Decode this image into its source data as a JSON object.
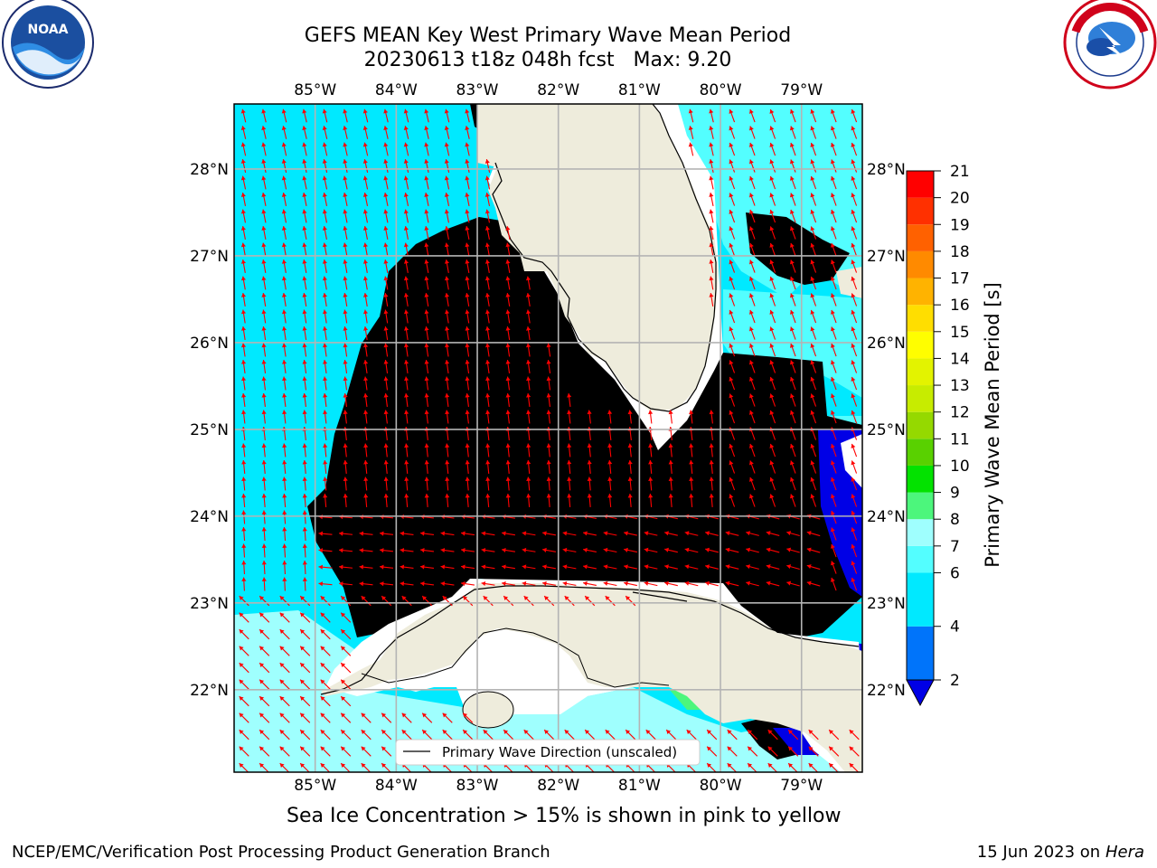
{
  "title": {
    "line1": "GEFS MEAN Key West Primary Wave Mean Period",
    "line2": "20230613 t18z 048h fcst   Max: 9.20"
  },
  "logos": {
    "noaa": {
      "icon": "noaa-logo",
      "text": "NOAA",
      "ring_text": "NATIONAL OCEANIC AND ATMOSPHERIC ADMINISTRATION · U.S. DEPARTMENT OF COMMERCE"
    },
    "nws": {
      "icon": "nws-logo",
      "ring_text": "NATIONAL WEATHER SERVICE"
    }
  },
  "map": {
    "lon_ticks": [
      "85°W",
      "84°W",
      "83°W",
      "82°W",
      "81°W",
      "80°W",
      "79°W"
    ],
    "lon_values": [
      -85,
      -84,
      -83,
      -82,
      -81,
      -80,
      -79
    ],
    "lat_ticks": [
      "28°N",
      "27°N",
      "26°N",
      "25°N",
      "24°N",
      "23°N",
      "22°N"
    ],
    "lat_values": [
      28,
      27,
      26,
      25,
      24,
      23,
      22
    ],
    "lon_range": [
      -86.0,
      -78.25
    ],
    "lat_range": [
      21.05,
      28.75
    ],
    "legend_label": "Primary Wave Direction (unscaled)",
    "land_color": "#eeecdc",
    "grid_color": "#b4b4b4",
    "arrow_color": "#ff0000"
  },
  "colorbar": {
    "label": "Primary Wave Mean Period [s]",
    "ticks": [
      "2",
      "4",
      "6",
      "7",
      "8",
      "9",
      "10",
      "11",
      "12",
      "13",
      "14",
      "15",
      "16",
      "17",
      "18",
      "19",
      "20",
      "21"
    ],
    "colors": [
      "#0074fa",
      "#00e9ff",
      "#53feff",
      "#9ffffe",
      "#4cf67c",
      "#03e200",
      "#59d100",
      "#95d900",
      "#c7ec00",
      "#e3f300",
      "#fffe00",
      "#ffde00",
      "#ffb300",
      "#ff8a00",
      "#ff6100",
      "#ff3000",
      "#ff0000"
    ],
    "under_color": "#0000e6"
  },
  "sea_ice_note": "Sea Ice Concentration > 15% is shown in pink to yellow",
  "footer": {
    "left": "NCEP/EMC/Verification Post Processing Product Generation Branch",
    "date": "15 Jun 2023 on",
    "host": "Hera"
  }
}
